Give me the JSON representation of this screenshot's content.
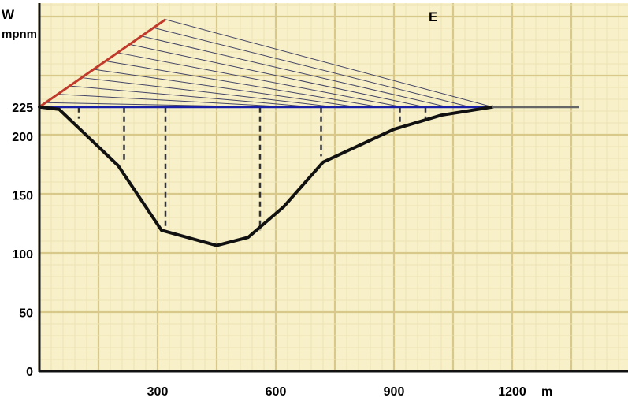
{
  "labels": {
    "west": "W",
    "east": "E",
    "y_unit": "mpnm",
    "x_unit": "m"
  },
  "y_axis": {
    "ticks": [
      {
        "value": 0,
        "label": "0"
      },
      {
        "value": 50,
        "label": "50"
      },
      {
        "value": 100,
        "label": "100"
      },
      {
        "value": 150,
        "label": "150"
      },
      {
        "value": 200,
        "label": "200"
      },
      {
        "value": 225,
        "label": "225"
      }
    ],
    "range": [
      0,
      225
    ]
  },
  "x_axis": {
    "ticks": [
      {
        "value": 300,
        "label": "300"
      },
      {
        "value": 600,
        "label": "600"
      },
      {
        "value": 900,
        "label": "900"
      },
      {
        "value": 1200,
        "label": "1200"
      }
    ],
    "range": [
      0,
      1300
    ]
  },
  "profile": {
    "points": [
      [
        0,
        225
      ],
      [
        50,
        223
      ],
      [
        200,
        175
      ],
      [
        310,
        120
      ],
      [
        450,
        107
      ],
      [
        530,
        114
      ],
      [
        620,
        140
      ],
      [
        720,
        178
      ],
      [
        900,
        206
      ],
      [
        1020,
        218
      ],
      [
        1150,
        225
      ]
    ],
    "right_flat_end": 1370,
    "reference_level": 225
  },
  "dashed_drops": [
    {
      "x": 100,
      "from": 225,
      "to": 215
    },
    {
      "x": 215,
      "from": 225,
      "to": 180
    },
    {
      "x": 320,
      "from": 225,
      "to": 122
    },
    {
      "x": 560,
      "from": 225,
      "to": 120
    },
    {
      "x": 715,
      "from": 225,
      "to": 183
    },
    {
      "x": 915,
      "from": 225,
      "to": 210
    },
    {
      "x": 980,
      "from": 225,
      "to": 215
    }
  ],
  "hatch_lines": 11,
  "colors": {
    "paper": "#f7f0c8",
    "grid_minor": "#ece3b4",
    "grid_major": "#d8c98a",
    "profile": "#111111",
    "reference": "#1a1fa8",
    "baseline": "#c0392b",
    "hatch": "#444466"
  }
}
